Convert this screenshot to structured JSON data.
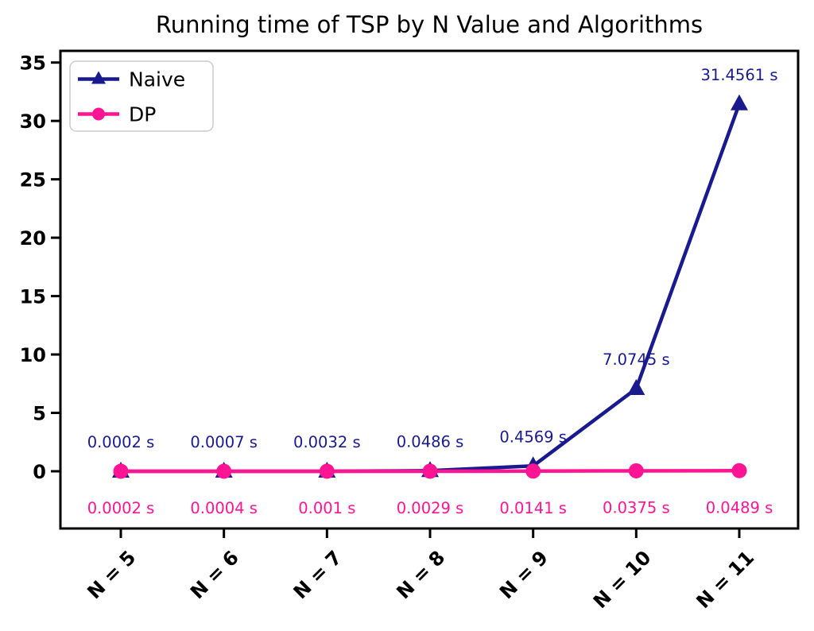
{
  "chart_data": {
    "type": "line",
    "title": "Running time of TSP by N Value and Algorithms",
    "categories": [
      "N = 5",
      "N = 6",
      "N = 7",
      "N = 8",
      "N = 9",
      "N = 10",
      "N = 11"
    ],
    "x_tick_rotation_deg": 45,
    "yticks": [
      0,
      5,
      10,
      15,
      20,
      25,
      30,
      35
    ],
    "ylim": [
      -4.9,
      36
    ],
    "grid": false,
    "legend_position": "upper left",
    "background_color": "#ffffff",
    "axis_color": "#000000",
    "series": [
      {
        "name": "Naive",
        "color": "#1A1A8F",
        "marker": "triangle",
        "values": [
          0.0002,
          0.0007,
          0.0032,
          0.0486,
          0.4569,
          7.0745,
          31.4561
        ],
        "point_labels": [
          "0.0002 s",
          "0.0007 s",
          "0.0032 s",
          "0.0486 s",
          "0.4569 s",
          "7.0745 s",
          "31.4561 s"
        ],
        "label_position": "above"
      },
      {
        "name": "DP",
        "color": "#FF1493",
        "marker": "circle",
        "values": [
          0.0002,
          0.0004,
          0.001,
          0.0029,
          0.0141,
          0.0375,
          0.0489
        ],
        "point_labels": [
          "0.0002 s",
          "0.0004 s",
          "0.001 s",
          "0.0029 s",
          "0.0141 s",
          "0.0375 s",
          "0.0489 s"
        ],
        "label_position": "below"
      }
    ]
  }
}
